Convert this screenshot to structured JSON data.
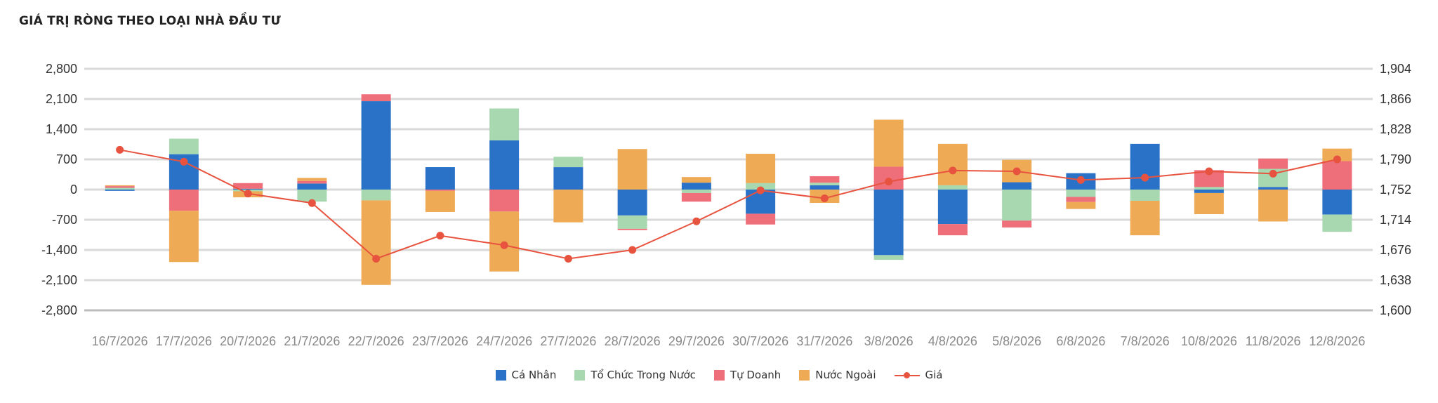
{
  "chart_data": {
    "type": "bar",
    "stacked": true,
    "title": "GIÁ TRỊ RÒNG THEO LOẠI NHÀ ĐẦU TƯ",
    "categories": [
      "16/7/2026",
      "17/7/2026",
      "20/7/2026",
      "21/7/2026",
      "22/7/2026",
      "23/7/2026",
      "24/7/2026",
      "27/7/2026",
      "28/7/2026",
      "29/7/2026",
      "30/7/2026",
      "31/7/2026",
      "3/8/2026",
      "4/8/2026",
      "5/8/2026",
      "6/8/2026",
      "7/8/2026",
      "10/8/2026",
      "11/8/2026",
      "12/8/2026"
    ],
    "series": [
      {
        "name": "Cá Nhân",
        "color": "#2a72c8",
        "values": [
          -30,
          820,
          20,
          140,
          2050,
          520,
          1140,
          520,
          -600,
          160,
          -560,
          100,
          -1520,
          -800,
          170,
          380,
          1060,
          -80,
          60,
          -580
        ]
      },
      {
        "name": "Tổ Chức Trong Nước",
        "color": "#a8d8b0",
        "values": [
          40,
          360,
          -40,
          -280,
          -250,
          0,
          740,
          240,
          -310,
          -80,
          150,
          60,
          -110,
          100,
          -720,
          -170,
          -260,
          60,
          420,
          -400
        ]
      },
      {
        "name": "Tự Doanh",
        "color": "#ee6e7a",
        "values": [
          40,
          -490,
          130,
          60,
          160,
          -30,
          -510,
          0,
          -30,
          -200,
          -250,
          150,
          530,
          -260,
          -160,
          -120,
          0,
          390,
          240,
          660
        ]
      },
      {
        "name": "Nước Ngoài",
        "color": "#eeaa55",
        "values": [
          20,
          -1190,
          -140,
          70,
          -1960,
          -490,
          -1390,
          -760,
          940,
          130,
          680,
          -310,
          1090,
          960,
          520,
          -160,
          -800,
          -490,
          -740,
          290
        ]
      }
    ],
    "line_series": {
      "name": "Giá",
      "color": "#e8533f",
      "axis": "right",
      "values": [
        1802,
        1787,
        1747,
        1735,
        1665,
        1694,
        1682,
        1665,
        1676,
        1712,
        1751,
        1741,
        1762,
        1776,
        1775,
        1764,
        1767,
        1775,
        1772,
        1790
      ]
    },
    "y_left": {
      "ylim": [
        -2800,
        2800
      ],
      "ticks": [
        "2,800",
        "2,100",
        "1,400",
        "700",
        "0",
        "-700",
        "-1,400",
        "-2,100",
        "-2,800"
      ]
    },
    "y_right": {
      "ylim": [
        1600,
        1904
      ],
      "ticks": [
        "1,904",
        "1,866",
        "1,828",
        "1,790",
        "1,752",
        "1,714",
        "1,676",
        "1,638",
        "1,600"
      ]
    },
    "grid": true,
    "legend_position": "bottom-center"
  }
}
